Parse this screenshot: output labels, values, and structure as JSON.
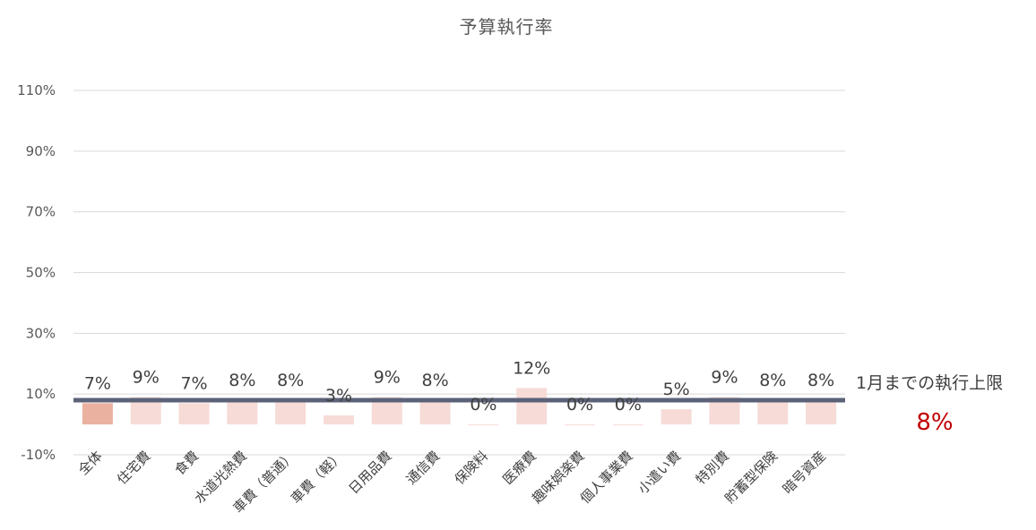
{
  "chart_data": {
    "type": "bar",
    "title": "予算執行率",
    "xlabel": "",
    "ylabel": "",
    "ylim": [
      -10,
      110
    ],
    "y_ticks": [
      110,
      90,
      70,
      50,
      30,
      10,
      -10
    ],
    "y_tick_labels": [
      "110%",
      "90%",
      "70%",
      "50%",
      "30%",
      "10%",
      "-10%"
    ],
    "grid": true,
    "categories": [
      "全体",
      "住宅費",
      "食費",
      "水道光熱費",
      "車費（普通）",
      "車費（軽）",
      "日用品費",
      "通信費",
      "保険料",
      "医療費",
      "趣味娯楽費",
      "個人事業費",
      "小遣い費",
      "特別費",
      "貯蓄型保険",
      "暗号資産"
    ],
    "values": [
      7,
      9,
      7,
      8,
      8,
      3,
      9,
      8,
      0,
      12,
      0,
      0,
      5,
      9,
      8,
      8
    ],
    "data_labels": [
      "7%",
      "9%",
      "7%",
      "8%",
      "8%",
      "3%",
      "9%",
      "8%",
      "0%",
      "12%",
      "0%",
      "0%",
      "5%",
      "9%",
      "8%",
      "8%"
    ],
    "reference_line": {
      "value": 8,
      "label": "1月までの執行上限",
      "value_label": "8%"
    },
    "colors": {
      "first_bar": "#ebb1a0",
      "bars": "#f6dbd7",
      "reference_line": "#5b6278",
      "limit_value": "#c00000",
      "grid": "#d9d9d9"
    }
  }
}
